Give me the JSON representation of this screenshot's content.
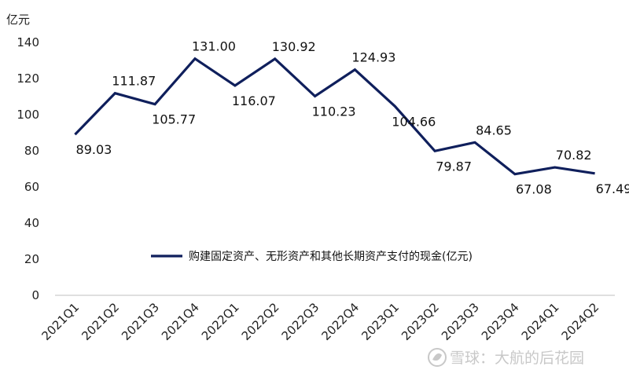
{
  "chart_data": {
    "type": "line",
    "unit_label": "亿元",
    "categories": [
      "2021Q1",
      "2021Q2",
      "2021Q3",
      "2021Q4",
      "2022Q1",
      "2022Q2",
      "2022Q3",
      "2022Q4",
      "2023Q1",
      "2023Q2",
      "2023Q3",
      "2023Q4",
      "2024Q1",
      "2024Q2"
    ],
    "series": [
      {
        "name": "购建固定资产、无形资产和其他长期资产支付的现金(亿元)",
        "color": "#0f1f5c",
        "values": [
          89.03,
          111.87,
          105.77,
          131.0,
          116.07,
          130.92,
          110.23,
          124.93,
          104.66,
          79.87,
          84.65,
          67.08,
          70.82,
          67.49
        ],
        "labels": [
          "89.03",
          "111.87",
          "105.77",
          "131.00",
          "116.07",
          "130.92",
          "110.23",
          "124.93",
          "104.66",
          "79.87",
          "84.65",
          "67.08",
          "70.82",
          "67.49"
        ]
      }
    ],
    "ylim": [
      0,
      140
    ],
    "yticks": [
      "0",
      "20",
      "40",
      "60",
      "80",
      "100",
      "120",
      "140"
    ],
    "grid": false,
    "legend_position": "center-right"
  },
  "watermark": {
    "text": "雪球：大航的后花园",
    "icon": "snowball-logo-icon"
  }
}
